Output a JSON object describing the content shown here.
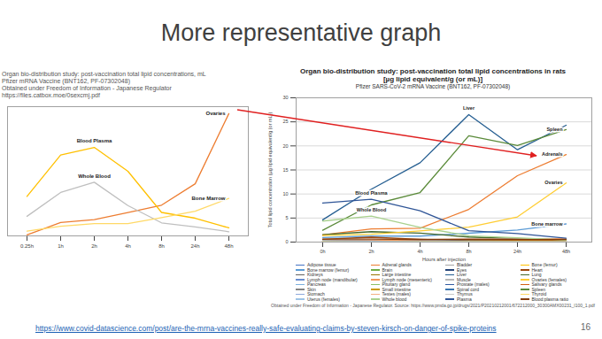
{
  "slide": {
    "title": "More representative graph",
    "link": "https://www.covid-datascience.com/post/are-the-mrna-vaccines-really-safe-evaluating-claims-by-steven-kirsch-on-danger-of-spike-proteins",
    "page": "16"
  },
  "chart_data": [
    {
      "type": "line",
      "title": "Organ bio-distribution study: post-vaccination total lipid concentrations, mL",
      "subtitle": "Pfizer mRNA Vaccine (BNT162, PF-07302048)",
      "source": "Obtained under Freedom of Information - Japanese Regulator",
      "source_link": "https://files.catbox.moe/0sexcmj.pdf",
      "x": [
        "0.25h",
        "1h",
        "2h",
        "4h",
        "8h",
        "24h",
        "48h"
      ],
      "ylim": [
        0,
        13
      ],
      "tick_labels": "x",
      "series": [
        {
          "name": "Ovaries",
          "color": "#ed7d31",
          "values": [
            0.104,
            1.34,
            1.64,
            2.34,
            3.09,
            5.24,
            12.3
          ]
        },
        {
          "name": "Blood Plasma",
          "color": "#ffc000",
          "values": [
            3.97,
            8.13,
            8.9,
            6.5,
            2.36,
            1.78,
            0.805
          ]
        },
        {
          "name": "Whole Blood",
          "color": "#bfbfbf",
          "values": [
            1.97,
            4.37,
            5.4,
            3.05,
            1.31,
            0.909,
            0.42
          ]
        },
        {
          "name": "Bone Marrow",
          "color": "#ffd966",
          "values": [
            0.479,
            0.96,
            1.24,
            1.24,
            1.84,
            2.49,
            3.77
          ]
        }
      ]
    },
    {
      "type": "line",
      "title": "Organ bio-distribution study: post-vaccination total lipid concentrations in rats",
      "title2": "[µg lipid equivalent/g (or mL)]",
      "subtitle": "Pfizer SARS-CoV-2 mRNA Vaccine (BNT162, PF-07302048)",
      "source": "Obtained under Freedom of Information - Japanese Regulator.  Source: https://www.pmda.go.jp/drugs/2021/P20210212001/672212000_30300AMX00231_I100_1.pdf",
      "xlabel": "Hours after injection",
      "ylabel": "Total lipid concentration (µg lipid equivalent/g (or mL))",
      "x": [
        "0h",
        "2h",
        "4h",
        "8h",
        "24h",
        "48h"
      ],
      "ylim": [
        0,
        30
      ],
      "yticks": [
        0,
        5,
        10,
        15,
        20,
        25,
        30
      ],
      "grid": true,
      "legend": "bottom",
      "series": [
        {
          "name": "Adipose tissue",
          "color": "#4472c4",
          "values": [
            0.1,
            0.126,
            0.128,
            0.093,
            0.084,
            0.181
          ]
        },
        {
          "name": "Adrenal glands",
          "color": "#ed7d31",
          "values": [
            1.48,
            2.72,
            2.89,
            6.8,
            13.8,
            18.2
          ]
        },
        {
          "name": "Bladder",
          "color": "#a5a5a5",
          "values": [
            0.041,
            0.13,
            0.078,
            0.039,
            0.03,
            0.042
          ]
        },
        {
          "name": "Bone (femur)",
          "color": "#ffc000",
          "values": [
            0.091,
            0.195,
            0.266,
            0.276,
            0.34,
            0.342
          ]
        },
        {
          "name": "Bone marrow (femur)",
          "color": "#5b9bd5",
          "values": [
            0.96,
            1.24,
            1.24,
            1.84,
            2.49,
            3.77
          ]
        },
        {
          "name": "Brain",
          "color": "#70ad47",
          "values": [
            0.013,
            0.022,
            0.016,
            0.009,
            0.009,
            0.008
          ]
        },
        {
          "name": "Eyes",
          "color": "#264478",
          "values": [
            0.02,
            0.044,
            0.022,
            0.021,
            0.01,
            0.008
          ]
        },
        {
          "name": "Heart",
          "color": "#9e480e",
          "values": [
            0.58,
            1.01,
            0.578,
            0.291,
            0.296,
            0.274
          ]
        },
        {
          "name": "Kidneys",
          "color": "#636363",
          "values": [
            0.261,
            0.312,
            0.317,
            0.23,
            0.165,
            0.156
          ]
        },
        {
          "name": "Large intestine",
          "color": "#997300",
          "values": [
            0.036,
            0.034,
            0.029,
            0.054,
            0.035,
            0.026
          ]
        },
        {
          "name": "Liver",
          "color": "#255e91",
          "values": [
            4.63,
            11.0,
            16.5,
            26.5,
            19.2,
            24.3
          ]
        },
        {
          "name": "Lung",
          "color": "#43682b",
          "values": [
            1.56,
            2.16,
            1.85,
            1.06,
            0.694,
            0.531
          ]
        },
        {
          "name": "Lymph node (mandibular)",
          "color": "#698ed0",
          "values": [
            0.144,
            0.309,
            0.431,
            0.577,
            0.602,
            0.612
          ]
        },
        {
          "name": "Lymph node (mesenteric)",
          "color": "#f1975a",
          "values": [
            0.149,
            0.283,
            0.482,
            0.627,
            0.612,
            0.72
          ]
        },
        {
          "name": "Muscle",
          "color": "#b7b7b7",
          "values": [
            0.081,
            0.049,
            0.023,
            0.015,
            0.02,
            0.019
          ]
        },
        {
          "name": "Ovaries (females)",
          "color": "#ffcd33",
          "values": [
            1.34,
            1.64,
            2.34,
            3.09,
            5.24,
            12.3
          ]
        },
        {
          "name": "Pancreas",
          "color": "#7cafdd",
          "values": [
            0.033,
            0.044,
            0.031,
            0.039,
            0.081,
            0.031
          ]
        },
        {
          "name": "Pituitary gland",
          "color": "#8cc168",
          "values": [
            0.075,
            0.094,
            0.044,
            0.035,
            0.097,
            0.103
          ]
        },
        {
          "name": "Prostate (males)",
          "color": "#335aa1",
          "values": [
            0.08,
            0.086,
            0.071,
            0.124,
            0.021,
            0.019
          ]
        },
        {
          "name": "Salivary glands",
          "color": "#d26012",
          "values": [
            0.104,
            0.099,
            0.126,
            0.076,
            0.133,
            0.133
          ]
        },
        {
          "name": "Skin",
          "color": "#848484",
          "values": [
            0.023,
            0.034,
            0.022,
            0.023,
            0.099,
            0.013
          ]
        },
        {
          "name": "Small intestine",
          "color": "#cc9a00",
          "values": [
            0.032,
            0.051,
            0.052,
            0.057,
            0.061,
            0.07
          ]
        },
        {
          "name": "Spinal cord",
          "color": "#3a75b1",
          "values": [
            0.036,
            0.048,
            0.032,
            0.026,
            0.024,
            0.027
          ]
        },
        {
          "name": "Spleen",
          "color": "#5a8a39",
          "values": [
            2.47,
            7.73,
            10.3,
            22.1,
            20.1,
            23.4
          ]
        },
        {
          "name": "Stomach",
          "color": "#8faadc",
          "values": [
            0.012,
            0.029,
            0.102,
            0.065,
            0.038,
            0.021
          ]
        },
        {
          "name": "Testes (males)",
          "color": "#f4b183",
          "values": [
            0.018,
            0.021,
            0.041,
            0.036,
            0.052,
            0.063
          ]
        },
        {
          "name": "Thymus",
          "color": "#c9c9c9",
          "values": [
            0.071,
            0.105,
            0.098,
            0.067,
            0.086,
            0.086
          ]
        },
        {
          "name": "Thyroid",
          "color": "#ffd966",
          "values": [
            0.154,
            0.085,
            0.142,
            0.154,
            0.161,
            0.045
          ]
        },
        {
          "name": "Uterus (females)",
          "color": "#9dc3e6",
          "values": [
            0.049,
            0.095,
            0.073,
            0.081,
            0.061,
            0.021
          ]
        },
        {
          "name": "Whole blood",
          "color": "#a9d18e",
          "values": [
            4.37,
            5.4,
            3.05,
            1.31,
            0.909,
            0.42
          ]
        },
        {
          "name": "Plasma",
          "color": "#2f5597",
          "values": [
            8.13,
            8.9,
            6.5,
            2.36,
            1.78,
            0.805
          ]
        },
        {
          "name": "Blood:plasma ratio",
          "color": "#843c0c",
          "values": [
            0.638,
            0.62,
            0.551,
            0.568,
            0.535,
            0.524
          ]
        }
      ],
      "annotations": [
        {
          "text": "Liver",
          "series": "Liver"
        },
        {
          "text": "Spleen",
          "series": "Spleen"
        },
        {
          "text": "Adrenals",
          "series": "Adrenal glands"
        },
        {
          "text": "Blood Plasma",
          "series": "Plasma"
        },
        {
          "text": "Whole Blood",
          "series": "Whole blood"
        },
        {
          "text": "Ovaries",
          "series": "Ovaries (females)"
        },
        {
          "text": "Bone marrow",
          "series": "Bone marrow (femur)"
        }
      ]
    }
  ]
}
